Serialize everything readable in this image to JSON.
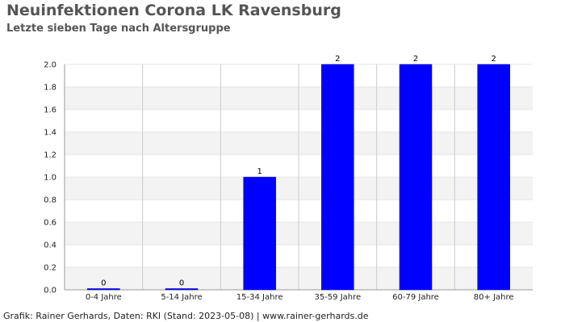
{
  "chart_data": {
    "type": "bar",
    "title": "Neuinfektionen Corona LK Ravensburg",
    "subtitle": "Letzte sieben Tage nach Altersgruppe",
    "categories": [
      "0-4 Jahre",
      "5-14 Jahre",
      "15-34 Jahre",
      "35-59 Jahre",
      "60-79 Jahre",
      "80+ Jahre"
    ],
    "values": [
      0,
      0,
      1,
      2,
      2,
      2
    ],
    "data_labels": [
      "0",
      "0",
      "1",
      "2",
      "2",
      "2"
    ],
    "ylim": [
      0,
      2.0
    ],
    "yticks": [
      "0.0",
      "0.2",
      "0.4",
      "0.6",
      "0.8",
      "1.0",
      "1.2",
      "1.4",
      "1.6",
      "1.8",
      "2.0"
    ],
    "xlabel": "",
    "ylabel": "",
    "grid": true,
    "bar_color": "#0000ff",
    "band_color": "#f3f3f3"
  },
  "footer": "Grafik: Rainer Gerhards, Daten: RKI (Stand: 2023-05-08) | www.rainer-gerhards.de"
}
